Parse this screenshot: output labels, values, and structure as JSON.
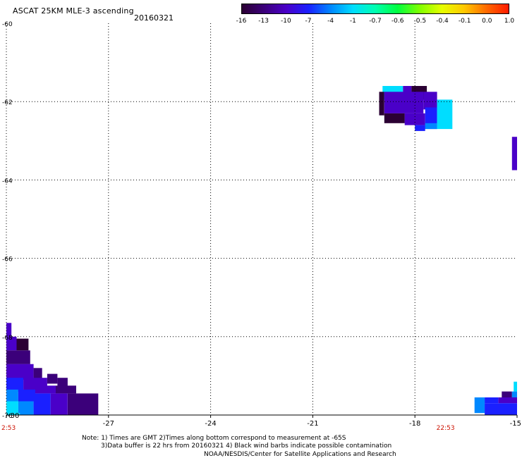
{
  "header": {
    "title": "ASCAT 25KM MLE-3 ascending",
    "date": "20160321"
  },
  "colorbar": {
    "labels": [
      "-16",
      "-13",
      "-10",
      "-7",
      "-4",
      "-1",
      "-0.7",
      "-0.6",
      "-0.5",
      "-0.4",
      "-0.1",
      "0.0",
      "1.0"
    ],
    "stops": [
      {
        "value": -16,
        "color": "#2b0033"
      },
      {
        "value": -13,
        "color": "#3b007a"
      },
      {
        "value": -10,
        "color": "#4a00c8"
      },
      {
        "value": -7,
        "color": "#1a20ff"
      },
      {
        "value": -4,
        "color": "#0088ff"
      },
      {
        "value": -1,
        "color": "#00ddff"
      },
      {
        "value": -0.7,
        "color": "#00ffb0"
      },
      {
        "value": -0.6,
        "color": "#00ff40"
      },
      {
        "value": -0.5,
        "color": "#80ff00"
      },
      {
        "value": -0.4,
        "color": "#e6ff00"
      },
      {
        "value": -0.1,
        "color": "#ffc800"
      },
      {
        "value": 0.0,
        "color": "#ff6a00"
      },
      {
        "value": 1.0,
        "color": "#ff1a00"
      }
    ]
  },
  "map": {
    "lon_min": -30,
    "lon_max": -15,
    "lat_min": -70,
    "lat_max": -60,
    "lon_ticks": [
      -27,
      -24,
      -21,
      -18
    ],
    "lon_tick_labels": [
      "-27",
      "-24",
      "-21",
      "-18"
    ],
    "edge_lon_labels": {
      "left": "-30",
      "right": "-15"
    },
    "lat_ticks": [
      -60,
      -62,
      -64,
      -66,
      -68,
      -70
    ],
    "lat_tick_labels": [
      "-60",
      "-62",
      "-64",
      "-66",
      "-68",
      "-70"
    ],
    "time_labels": [
      {
        "lon": -30,
        "text": "2:53"
      },
      {
        "lon": -17.1,
        "text": "22:53"
      }
    ],
    "gridlines": true
  },
  "note": {
    "line1": "Note: 1) Times are GMT 2)Times along bottom correspond to measurement at -65S",
    "line2": "3)Data buffer is 22 hrs from 20160321 4) Black wind barbs indicate possible contamination",
    "credit": "NOAA/NESDIS/Center for Satellite Applications and Research"
  },
  "swaths": [
    {
      "name": "northeast-patch",
      "cells": [
        {
          "lon": -18.95,
          "lat": -61.6,
          "w": 0.6,
          "h": 0.35,
          "v": -1
        },
        {
          "lon": -18.35,
          "lat": -61.6,
          "w": 0.25,
          "h": 0.35,
          "v": -10
        },
        {
          "lon": -18.1,
          "lat": -61.6,
          "w": 0.45,
          "h": 0.35,
          "v": -16
        },
        {
          "lon": -19.05,
          "lat": -61.75,
          "w": 0.15,
          "h": 0.6,
          "v": -16
        },
        {
          "lon": -18.9,
          "lat": -61.75,
          "w": 1.15,
          "h": 0.55,
          "v": -10
        },
        {
          "lon": -17.75,
          "lat": -61.75,
          "w": 0.4,
          "h": 0.45,
          "v": -10
        },
        {
          "lon": -17.35,
          "lat": -61.95,
          "w": 0.45,
          "h": 0.2,
          "v": -1
        },
        {
          "lon": -18.9,
          "lat": -62.3,
          "w": 0.6,
          "h": 0.25,
          "v": -16
        },
        {
          "lon": -18.3,
          "lat": -62.3,
          "w": 0.6,
          "h": 0.3,
          "v": -10
        },
        {
          "lon": -17.7,
          "lat": -62.15,
          "w": 0.35,
          "h": 0.55,
          "v": -7
        },
        {
          "lon": -17.35,
          "lat": -62.15,
          "w": 0.45,
          "h": 0.55,
          "v": -1
        },
        {
          "lon": -17.7,
          "lat": -62.55,
          "w": 0.35,
          "h": 0.15,
          "v": -4
        },
        {
          "lon": -18.0,
          "lat": -62.6,
          "w": 0.3,
          "h": 0.15,
          "v": -7
        }
      ]
    },
    {
      "name": "east-strip",
      "cells": [
        {
          "lon": -15.15,
          "lat": -62.9,
          "w": 0.15,
          "h": 0.85,
          "v": -10
        }
      ]
    },
    {
      "name": "southwest-wedge",
      "cells": [
        {
          "lon": -30,
          "lat": -67.65,
          "w": 0.15,
          "h": 0.35,
          "v": -10
        },
        {
          "lon": -30,
          "lat": -68.0,
          "w": 0.3,
          "h": 0.35,
          "v": -10
        },
        {
          "lon": -29.7,
          "lat": -68.05,
          "w": 0.35,
          "h": 0.3,
          "v": -16
        },
        {
          "lon": -30,
          "lat": -68.35,
          "w": 0.7,
          "h": 0.35,
          "v": -13
        },
        {
          "lon": -30,
          "lat": -68.7,
          "w": 0.8,
          "h": 0.4,
          "v": -10
        },
        {
          "lon": -29.2,
          "lat": -68.8,
          "w": 0.25,
          "h": 0.3,
          "v": -13
        },
        {
          "lon": -30,
          "lat": -69.05,
          "w": 0.5,
          "h": 0.35,
          "v": -7
        },
        {
          "lon": -29.5,
          "lat": -69.05,
          "w": 0.7,
          "h": 0.35,
          "v": -10
        },
        {
          "lon": -28.8,
          "lat": -68.95,
          "w": 0.3,
          "h": 0.25,
          "v": -13
        },
        {
          "lon": -28.5,
          "lat": -69.05,
          "w": 0.3,
          "h": 0.25,
          "v": -13
        },
        {
          "lon": -30,
          "lat": -69.35,
          "w": 0.35,
          "h": 0.3,
          "v": -4
        },
        {
          "lon": -29.65,
          "lat": -69.35,
          "w": 0.5,
          "h": 0.3,
          "v": -7
        },
        {
          "lon": -29.15,
          "lat": -69.25,
          "w": 0.6,
          "h": 0.2,
          "v": -10
        },
        {
          "lon": -28.55,
          "lat": -69.25,
          "w": 0.6,
          "h": 0.2,
          "v": -13
        },
        {
          "lon": -30,
          "lat": -69.65,
          "w": 0.35,
          "h": 0.3,
          "v": -1
        },
        {
          "lon": -29.65,
          "lat": -69.65,
          "w": 0.45,
          "h": 0.3,
          "v": -4
        },
        {
          "lon": -29.2,
          "lat": -69.45,
          "w": 0.5,
          "h": 0.55,
          "v": -7
        },
        {
          "lon": -28.7,
          "lat": -69.45,
          "w": 0.5,
          "h": 0.55,
          "v": -10
        },
        {
          "lon": -28.2,
          "lat": -69.45,
          "w": 0.9,
          "h": 0.55,
          "v": -13
        },
        {
          "lon": -30,
          "lat": -69.95,
          "w": 0.6,
          "h": 0.05,
          "v": -1
        },
        {
          "lon": -29.6,
          "lat": -69.85,
          "w": 0.4,
          "h": 0.15,
          "v": -4
        }
      ]
    },
    {
      "name": "southeast-wedge",
      "cells": [
        {
          "lon": -15.1,
          "lat": -69.15,
          "w": 0.1,
          "h": 0.25,
          "v": -1
        },
        {
          "lon": -15.45,
          "lat": -69.4,
          "w": 0.3,
          "h": 0.2,
          "v": -13
        },
        {
          "lon": -15.15,
          "lat": -69.4,
          "w": 0.15,
          "h": 0.2,
          "v": -4
        },
        {
          "lon": -16.25,
          "lat": -69.55,
          "w": 0.3,
          "h": 0.4,
          "v": -4
        },
        {
          "lon": -15.95,
          "lat": -69.55,
          "w": 0.4,
          "h": 0.15,
          "v": -7
        },
        {
          "lon": -15.55,
          "lat": -69.55,
          "w": 0.55,
          "h": 0.15,
          "v": -10
        },
        {
          "lon": -15.95,
          "lat": -69.7,
          "w": 0.95,
          "h": 0.3,
          "v": -7
        }
      ]
    }
  ]
}
